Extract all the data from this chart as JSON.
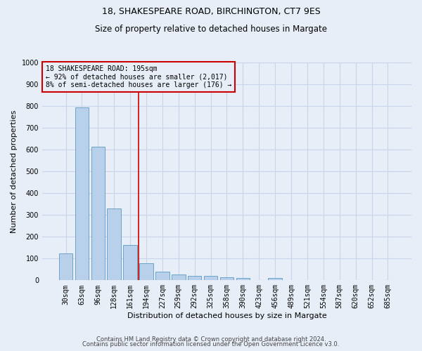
{
  "title1": "18, SHAKESPEARE ROAD, BIRCHINGTON, CT7 9ES",
  "title2": "Size of property relative to detached houses in Margate",
  "xlabel": "Distribution of detached houses by size in Margate",
  "ylabel": "Number of detached properties",
  "categories": [
    "30sqm",
    "63sqm",
    "96sqm",
    "128sqm",
    "161sqm",
    "194sqm",
    "227sqm",
    "259sqm",
    "292sqm",
    "325sqm",
    "358sqm",
    "390sqm",
    "423sqm",
    "456sqm",
    "489sqm",
    "521sqm",
    "554sqm",
    "587sqm",
    "620sqm",
    "652sqm",
    "685sqm"
  ],
  "values": [
    125,
    795,
    615,
    330,
    162,
    80,
    40,
    27,
    22,
    20,
    15,
    10,
    0,
    10,
    0,
    0,
    0,
    0,
    0,
    0,
    0
  ],
  "bar_color": "#b8d0ea",
  "bar_edge_color": "#5a9bc5",
  "subject_line_color": "#cc0000",
  "ylim": [
    0,
    1000
  ],
  "yticks": [
    0,
    100,
    200,
    300,
    400,
    500,
    600,
    700,
    800,
    900,
    1000
  ],
  "annotation_text": "18 SHAKESPEARE ROAD: 195sqm\n← 92% of detached houses are smaller (2,017)\n8% of semi-detached houses are larger (176) →",
  "annotation_box_color": "#cc0000",
  "footer1": "Contains HM Land Registry data © Crown copyright and database right 2024.",
  "footer2": "Contains public sector information licensed under the Open Government Licence v3.0.",
  "background_color": "#e8eef8",
  "grid_color": "#c8d4e8",
  "title1_fontsize": 9,
  "title2_fontsize": 8.5,
  "ylabel_fontsize": 8,
  "xlabel_fontsize": 8,
  "tick_fontsize": 7,
  "annotation_fontsize": 7,
  "footer_fontsize": 6
}
